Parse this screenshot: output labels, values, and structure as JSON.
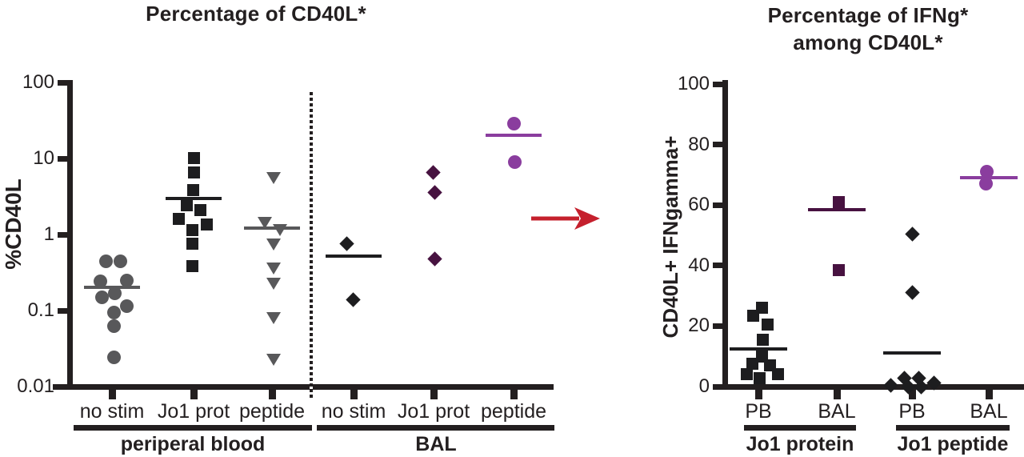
{
  "figure": {
    "background": "#ffffff",
    "text_color": "#231f20",
    "axis_color": "#231f20",
    "arrow_color": "#c5202d"
  },
  "chart_data": [
    {
      "type": "scatter",
      "yscale": "log",
      "title_lines": [
        "Percentage of CD40L*"
      ],
      "ylabel": "%CD40L",
      "ylim": [
        0.01,
        100
      ],
      "yticks": [
        "100",
        "10",
        "1",
        "0.1",
        "0.01"
      ],
      "legend": "none",
      "grid": false,
      "sections": [
        {
          "label": "periperal blood"
        },
        {
          "label": "BAL"
        }
      ],
      "groups": [
        {
          "label": "no stim",
          "section": "periperal blood",
          "marker": "circle",
          "color": "#58585a",
          "median": 0.2,
          "points": [
            {
              "v": 0.44,
              "dx": -8
            },
            {
              "v": 0.44,
              "dx": 10
            },
            {
              "v": 0.25,
              "dx": 18
            },
            {
              "v": 0.24,
              "dx": -15
            },
            {
              "v": 0.17,
              "dx": 3
            },
            {
              "v": 0.15,
              "dx": -13
            },
            {
              "v": 0.115,
              "dx": 18
            },
            {
              "v": 0.095,
              "dx": 2
            },
            {
              "v": 0.062,
              "dx": 2
            },
            {
              "v": 0.024,
              "dx": 2
            }
          ]
        },
        {
          "label": "Jo1 prot",
          "section": "periperal blood",
          "marker": "square",
          "color": "#1d1d1f",
          "median": 3,
          "points": [
            {
              "v": 10.2,
              "dx": 0
            },
            {
              "v": 6.6,
              "dx": 0
            },
            {
              "v": 3.8,
              "dx": -1
            },
            {
              "v": 2.4,
              "dx": -9
            },
            {
              "v": 2.1,
              "dx": 8
            },
            {
              "v": 1.6,
              "dx": -19
            },
            {
              "v": 1.35,
              "dx": 16
            },
            {
              "v": 1.15,
              "dx": -2
            },
            {
              "v": 0.75,
              "dx": -2
            },
            {
              "v": 0.38,
              "dx": -2
            }
          ]
        },
        {
          "label": "peptide",
          "section": "periperal blood",
          "marker": "triangle-down",
          "color": "#58585a",
          "median": 1.2,
          "points": [
            {
              "v": 5.6,
              "dx": 2
            },
            {
              "v": 1.45,
              "dx": -9
            },
            {
              "v": 1.15,
              "dx": 10
            },
            {
              "v": 0.75,
              "dx": 2
            },
            {
              "v": 0.36,
              "dx": 2
            },
            {
              "v": 0.23,
              "dx": 2
            },
            {
              "v": 0.081,
              "dx": 2
            },
            {
              "v": 0.023,
              "dx": 2
            }
          ]
        },
        {
          "label": "no stim",
          "section": "BAL",
          "marker": "diamond",
          "color": "#1d1d1f",
          "median": 0.52,
          "points": [
            {
              "v": 0.75,
              "dx": -9
            },
            {
              "v": 0.14,
              "dx": -1
            }
          ]
        },
        {
          "label": "Jo1 prot",
          "section": "BAL",
          "marker": "diamond",
          "color": "#471240",
          "median": null,
          "points": [
            {
              "v": 6.5,
              "dx": -1
            },
            {
              "v": 3.6,
              "dx": 1
            },
            {
              "v": 0.48,
              "dx": 1
            }
          ]
        },
        {
          "label": "peptide",
          "section": "BAL",
          "marker": "circle",
          "color": "#8a3d9e",
          "median": 20,
          "points": [
            {
              "v": 29,
              "dx": 0
            },
            {
              "v": 9,
              "dx": 1
            }
          ]
        }
      ]
    },
    {
      "type": "scatter",
      "yscale": "linear",
      "title_lines": [
        "Percentage of IFNg*",
        "among CD40L*"
      ],
      "ylabel": "CD40L+ IFNgamma+",
      "ylim": [
        0,
        100
      ],
      "yticks": [
        "100",
        "80",
        "60",
        "40",
        "20",
        "0"
      ],
      "legend": "none",
      "grid": false,
      "sections": [
        {
          "label": "Jo1 protein"
        },
        {
          "label": "Jo1 peptide"
        }
      ],
      "groups": [
        {
          "label": "PB",
          "section": "Jo1 protein",
          "marker": "square",
          "color": "#1d1d1f",
          "median": 12.5,
          "points": [
            {
              "v": 26,
              "dx": 4
            },
            {
              "v": 23.5,
              "dx": -7
            },
            {
              "v": 20.5,
              "dx": 11
            },
            {
              "v": 15.5,
              "dx": 5
            },
            {
              "v": 10,
              "dx": 4
            },
            {
              "v": 7.5,
              "dx": -8
            },
            {
              "v": 7,
              "dx": 14
            },
            {
              "v": 4,
              "dx": -15
            },
            {
              "v": 4,
              "dx": 24
            },
            {
              "v": 2.7,
              "dx": 1
            }
          ]
        },
        {
          "label": "BAL",
          "section": "Jo1 protein",
          "marker": "square",
          "color": "#471240",
          "median": 58.5,
          "points": [
            {
              "v": 61,
              "dx": 2
            },
            {
              "v": 38.5,
              "dx": 2
            }
          ]
        },
        {
          "label": "PB",
          "section": "Jo1 peptide",
          "marker": "diamond",
          "color": "#1d1d1f",
          "median": 11,
          "points": [
            {
              "v": 50.5,
              "dx": 0
            },
            {
              "v": 31,
              "dx": 0
            },
            {
              "v": 2.7,
              "dx": 8
            },
            {
              "v": 2.7,
              "dx": -10
            },
            {
              "v": 1.3,
              "dx": 27
            },
            {
              "v": 0.3,
              "dx": -27
            },
            {
              "v": 0,
              "dx": -5
            },
            {
              "v": 0,
              "dx": 11
            }
          ]
        },
        {
          "label": "BAL",
          "section": "Jo1 peptide",
          "marker": "circle",
          "color": "#8a3d9e",
          "median": 69,
          "points": [
            {
              "v": 71,
              "dx": -3
            },
            {
              "v": 67,
              "dx": -4
            }
          ]
        }
      ]
    }
  ]
}
